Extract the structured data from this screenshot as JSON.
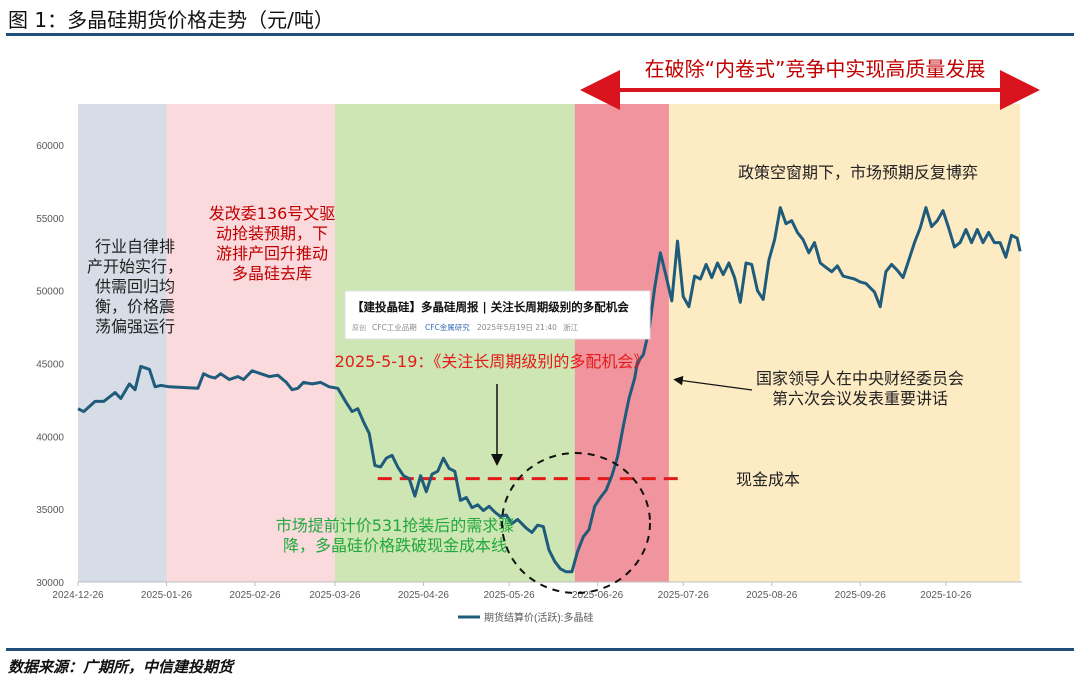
{
  "header": {
    "title": "图 1：多晶硅期货价格走势（元/吨）"
  },
  "footer": {
    "source": "数据来源：广期所，中信建投期货"
  },
  "colors": {
    "line": "#1f5b7a",
    "rule": "#1f4e79",
    "arrow_red": "#d9141e",
    "dashed_red": "#e31b1b",
    "annotation_red": "#c00000",
    "annotation_green": "#22a83c",
    "zone_blue": "#d6dde6",
    "zone_pink": "#fadadd",
    "zone_green": "#cde6b3",
    "zone_red": "#f0959e",
    "zone_yellow": "#fdebc4"
  },
  "chart_data": {
    "type": "line",
    "title": "",
    "xlabel": "",
    "ylabel": "",
    "ylim": [
      30000,
      60000
    ],
    "yticks": [
      "30000",
      "35000",
      "40000",
      "45000",
      "50000",
      "55000",
      "60000"
    ],
    "xticks": [
      "2024-12-26",
      "2025-01-26",
      "2025-02-26",
      "2025-03-26",
      "2025-04-26",
      "2025-05-26",
      "2025-06-26",
      "2025-07-26",
      "2025-08-26",
      "2025-09-26",
      "2025-10-26"
    ],
    "grid": false,
    "legend": {
      "position": "bottom",
      "label": "期货结算价(活跃):多晶硅"
    },
    "zones": [
      {
        "from": "2024-12-26",
        "to": "2025-01-26",
        "color": "blue"
      },
      {
        "from": "2025-01-26",
        "to": "2025-03-26",
        "color": "pink"
      },
      {
        "from": "2025-03-26",
        "to": "2025-06-18",
        "color": "green"
      },
      {
        "from": "2025-06-18",
        "to": "2025-07-21",
        "color": "red"
      },
      {
        "from": "2025-07-21",
        "to": "2025-11-21",
        "color": "yellow"
      }
    ],
    "cash_cost": {
      "value": 37100,
      "label": "现金成本",
      "from": "2025-04-10",
      "to": "2025-07-26"
    },
    "series": [
      {
        "name": "期货结算价(活跃):多晶硅",
        "points": [
          [
            "2024-12-26",
            41900
          ],
          [
            "2024-12-28",
            41700
          ],
          [
            "2025-01-01",
            42400
          ],
          [
            "2025-01-04",
            42400
          ],
          [
            "2025-01-08",
            43000
          ],
          [
            "2025-01-10",
            42600
          ],
          [
            "2025-01-13",
            43600
          ],
          [
            "2025-01-15",
            43200
          ],
          [
            "2025-01-17",
            44800
          ],
          [
            "2025-01-20",
            44600
          ],
          [
            "2025-01-22",
            43400
          ],
          [
            "2025-01-24",
            43500
          ],
          [
            "2025-01-27",
            43400
          ],
          [
            "2025-02-06",
            43300
          ],
          [
            "2025-02-08",
            44300
          ],
          [
            "2025-02-10",
            44100
          ],
          [
            "2025-02-12",
            44000
          ],
          [
            "2025-02-14",
            44300
          ],
          [
            "2025-02-17",
            43900
          ],
          [
            "2025-02-20",
            44100
          ],
          [
            "2025-02-22",
            43900
          ],
          [
            "2025-02-25",
            44500
          ],
          [
            "2025-02-28",
            44300
          ],
          [
            "2025-03-03",
            44100
          ],
          [
            "2025-03-06",
            44200
          ],
          [
            "2025-03-09",
            43700
          ],
          [
            "2025-03-11",
            43200
          ],
          [
            "2025-03-13",
            43300
          ],
          [
            "2025-03-15",
            43700
          ],
          [
            "2025-03-18",
            43600
          ],
          [
            "2025-03-21",
            43700
          ],
          [
            "2025-03-24",
            43400
          ],
          [
            "2025-03-27",
            43300
          ],
          [
            "2025-03-30",
            42300
          ],
          [
            "2025-04-01",
            41700
          ],
          [
            "2025-04-03",
            41900
          ],
          [
            "2025-04-05",
            41000
          ],
          [
            "2025-04-07",
            40200
          ],
          [
            "2025-04-09",
            38000
          ],
          [
            "2025-04-11",
            37900
          ],
          [
            "2025-04-13",
            38500
          ],
          [
            "2025-04-15",
            38700
          ],
          [
            "2025-04-17",
            37900
          ],
          [
            "2025-04-19",
            37300
          ],
          [
            "2025-04-21",
            37100
          ],
          [
            "2025-04-23",
            35900
          ],
          [
            "2025-04-25",
            37300
          ],
          [
            "2025-04-27",
            36200
          ],
          [
            "2025-04-29",
            37400
          ],
          [
            "2025-05-01",
            37600
          ],
          [
            "2025-05-03",
            38500
          ],
          [
            "2025-05-05",
            37800
          ],
          [
            "2025-05-07",
            37600
          ],
          [
            "2025-05-09",
            35600
          ],
          [
            "2025-05-11",
            35800
          ],
          [
            "2025-05-13",
            35100
          ],
          [
            "2025-05-15",
            35300
          ],
          [
            "2025-05-17",
            34900
          ],
          [
            "2025-05-19",
            35200
          ],
          [
            "2025-05-21",
            34800
          ],
          [
            "2025-05-23",
            34500
          ],
          [
            "2025-05-25",
            34600
          ],
          [
            "2025-05-27",
            34000
          ],
          [
            "2025-05-29",
            34300
          ],
          [
            "2025-06-01",
            33700
          ],
          [
            "2025-06-03",
            33400
          ],
          [
            "2025-06-05",
            33900
          ],
          [
            "2025-06-07",
            33800
          ],
          [
            "2025-06-09",
            32200
          ],
          [
            "2025-06-11",
            31400
          ],
          [
            "2025-06-13",
            30900
          ],
          [
            "2025-06-15",
            30700
          ],
          [
            "2025-06-17",
            30700
          ],
          [
            "2025-06-19",
            32100
          ],
          [
            "2025-06-21",
            33100
          ],
          [
            "2025-06-23",
            33600
          ],
          [
            "2025-06-25",
            35200
          ],
          [
            "2025-06-27",
            35800
          ],
          [
            "2025-06-29",
            36300
          ],
          [
            "2025-07-01",
            37300
          ],
          [
            "2025-07-03",
            38600
          ],
          [
            "2025-07-05",
            40700
          ],
          [
            "2025-07-07",
            42600
          ],
          [
            "2025-07-09",
            44000
          ],
          [
            "2025-07-10",
            45100
          ],
          [
            "2025-07-12",
            45600
          ],
          [
            "2025-07-14",
            47300
          ],
          [
            "2025-07-16",
            50200
          ],
          [
            "2025-07-18",
            52600
          ],
          [
            "2025-07-20",
            51000
          ],
          [
            "2025-07-22",
            49300
          ],
          [
            "2025-07-24",
            53400
          ],
          [
            "2025-07-26",
            49600
          ],
          [
            "2025-07-28",
            48900
          ],
          [
            "2025-07-30",
            51000
          ],
          [
            "2025-08-01",
            50800
          ],
          [
            "2025-08-03",
            51800
          ],
          [
            "2025-08-05",
            50900
          ],
          [
            "2025-08-07",
            51900
          ],
          [
            "2025-08-09",
            51100
          ],
          [
            "2025-08-11",
            51900
          ],
          [
            "2025-08-13",
            50900
          ],
          [
            "2025-08-15",
            49200
          ],
          [
            "2025-08-17",
            51900
          ],
          [
            "2025-08-19",
            51800
          ],
          [
            "2025-08-21",
            50000
          ],
          [
            "2025-08-23",
            49400
          ],
          [
            "2025-08-25",
            52100
          ],
          [
            "2025-08-27",
            53500
          ],
          [
            "2025-08-29",
            55700
          ],
          [
            "2025-08-31",
            54600
          ],
          [
            "2025-09-02",
            54800
          ],
          [
            "2025-09-04",
            54000
          ],
          [
            "2025-09-06",
            53500
          ],
          [
            "2025-09-08",
            52600
          ],
          [
            "2025-09-10",
            53300
          ],
          [
            "2025-09-12",
            51900
          ],
          [
            "2025-09-14",
            51600
          ],
          [
            "2025-09-16",
            51300
          ],
          [
            "2025-09-18",
            51700
          ],
          [
            "2025-09-20",
            51000
          ],
          [
            "2025-09-22",
            50900
          ],
          [
            "2025-09-24",
            50800
          ],
          [
            "2025-09-26",
            50600
          ],
          [
            "2025-09-28",
            50500
          ],
          [
            "2025-10-01",
            49900
          ],
          [
            "2025-10-03",
            48900
          ],
          [
            "2025-10-05",
            51300
          ],
          [
            "2025-10-07",
            51800
          ],
          [
            "2025-10-09",
            51400
          ],
          [
            "2025-10-11",
            50900
          ],
          [
            "2025-10-13",
            52100
          ],
          [
            "2025-10-15",
            53300
          ],
          [
            "2025-10-17",
            54300
          ],
          [
            "2025-10-19",
            55700
          ],
          [
            "2025-10-21",
            54400
          ],
          [
            "2025-10-23",
            54800
          ],
          [
            "2025-10-25",
            55500
          ],
          [
            "2025-10-27",
            54300
          ],
          [
            "2025-10-29",
            53000
          ],
          [
            "2025-10-31",
            53300
          ],
          [
            "2025-11-02",
            54200
          ],
          [
            "2025-11-04",
            53300
          ],
          [
            "2025-11-06",
            54200
          ],
          [
            "2025-11-08",
            53300
          ],
          [
            "2025-11-10",
            54000
          ],
          [
            "2025-11-12",
            53300
          ],
          [
            "2025-11-14",
            53300
          ],
          [
            "2025-11-16",
            52300
          ],
          [
            "2025-11-18",
            53800
          ],
          [
            "2025-11-20",
            53600
          ],
          [
            "2025-11-21",
            52700
          ]
        ]
      }
    ],
    "annotations": {
      "top_banner": "在破除“内卷式”竞争中实现高质量发展",
      "zone1": [
        "行业自律排",
        "产开始实行，",
        "供需回归均",
        "衡，价格震",
        "荡偏强运行"
      ],
      "zone2": [
        "发改委136号文驱",
        "动抢装预期，下",
        "游排产回升推动",
        "多晶硅去库"
      ],
      "zone3": [
        "市场提前计价531抢装后的需求骤",
        "降，多晶硅价格跌破现金成本线"
      ],
      "zone5": "政策空窗期下，市场预期反复博弈",
      "meeting": [
        "国家领导人在中央财经委员会",
        "第六次会议发表重要讲话"
      ],
      "report_date": "2025-5-19：《关注长周期级别的多配机会》",
      "article_card": {
        "title": "【建投晶硅】多晶硅周报 | 关注长周期级别的多配机会",
        "tag": "原创",
        "meta": [
          "CFC工业品期",
          "CFC金属研究",
          "2025年5月19日 21:40",
          "浙江"
        ]
      }
    }
  }
}
